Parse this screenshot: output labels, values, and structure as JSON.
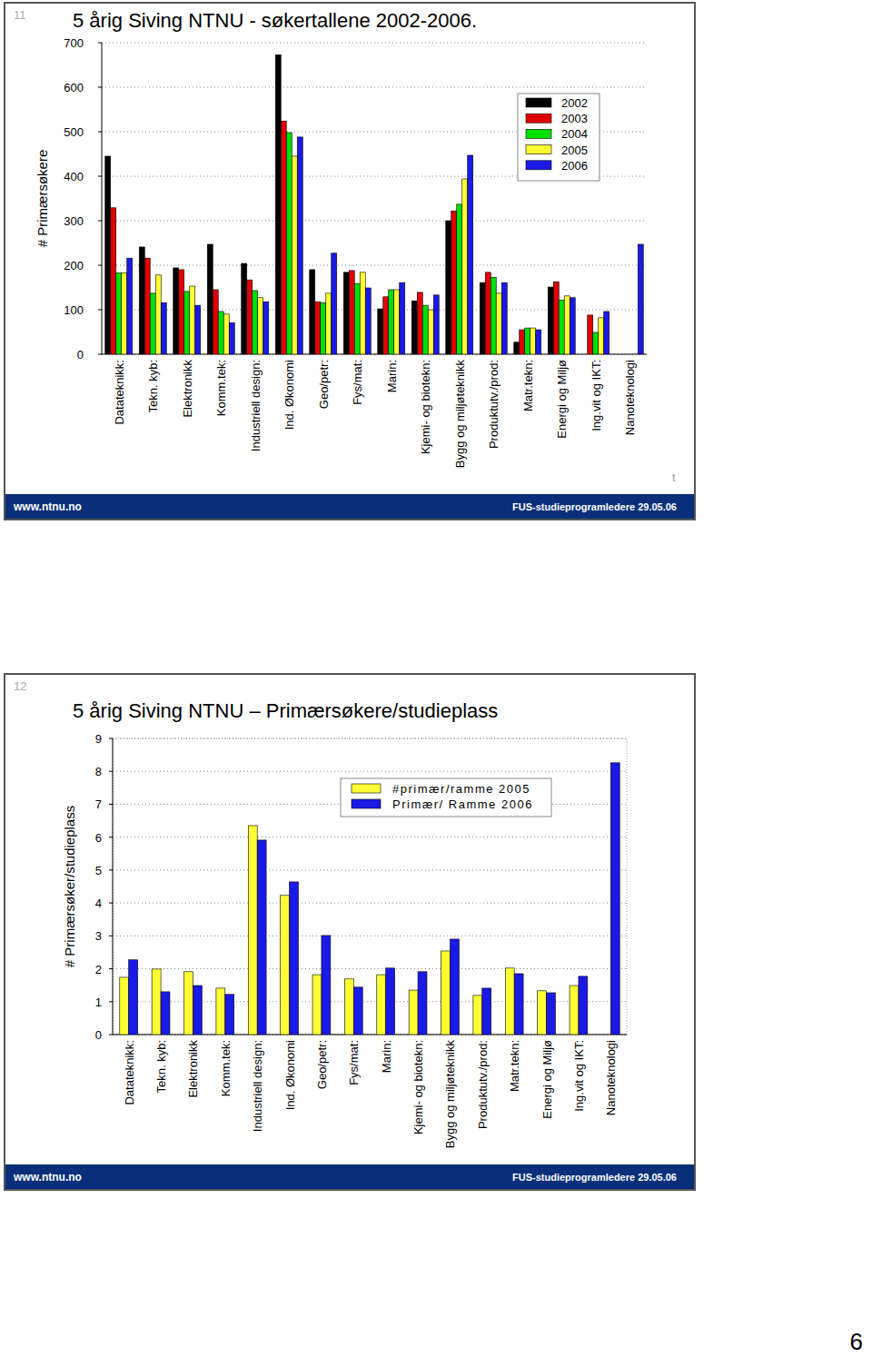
{
  "page": {
    "number": 6,
    "slides": [
      {
        "number": 11,
        "url": "www.ntnu.no",
        "footer": "FUS-studieprogramledere 29.05.06",
        "mark": "t"
      },
      {
        "number": 12,
        "url": "www.ntnu.no",
        "footer": "FUS-studieprogramledere 29.05.06"
      }
    ]
  },
  "chart_data": [
    {
      "type": "bar",
      "title": "5 årig Siving NTNU - søkertallene 2002-2006.",
      "ylabel": "# Primærsøkere",
      "categories": [
        "Datateknikk:",
        "Tekn. kyb:",
        "Elektronikk",
        "Komm.tek:",
        "Industriell design:",
        "Ind. Økonomi",
        "Geo/petr:",
        "Fys/mat:",
        "Marin:",
        "Kjemi- og biotekn:",
        "Bygg og miljøteknikk",
        "Produktutv./prod:",
        "Matr.tekn:",
        "Energi og Miljø",
        "Ing.vit og IKT:",
        "Nanoteknologi"
      ],
      "series": [
        {
          "name": "2002",
          "color": "#000000",
          "values": [
            445,
            241,
            194,
            247,
            204,
            673,
            190,
            184,
            102,
            120,
            300,
            161,
            27,
            151,
            null,
            null
          ]
        },
        {
          "name": "2003",
          "color": "#e00000",
          "values": [
            329,
            216,
            190,
            145,
            167,
            524,
            118,
            188,
            129,
            139,
            322,
            184,
            55,
            163,
            88,
            null
          ]
        },
        {
          "name": "2004",
          "color": "#00e000",
          "values": [
            183,
            137,
            141,
            96,
            143,
            498,
            116,
            159,
            145,
            110,
            337,
            173,
            59,
            122,
            49,
            null
          ]
        },
        {
          "name": "2005",
          "color": "#ffff33",
          "values": [
            183,
            178,
            153,
            90,
            127,
            445,
            137,
            184,
            145,
            100,
            394,
            137,
            59,
            131,
            82,
            null
          ]
        },
        {
          "name": "2006",
          "color": "#1a1ae6",
          "values": [
            216,
            116,
            110,
            71,
            118,
            488,
            227,
            149,
            161,
            133,
            447,
            161,
            55,
            127,
            96,
            247
          ]
        }
      ],
      "ylim": [
        0,
        700
      ],
      "yticks": [
        0,
        100,
        200,
        300,
        400,
        500,
        600,
        700
      ],
      "grid": true,
      "legend": "upper right"
    },
    {
      "type": "bar",
      "title": "5 årig Siving NTNU – Primærsøkere/studieplass",
      "ylabel": "# Primærsøker/studieplass",
      "categories": [
        "Datateknikk:",
        "Tekn. kyb:",
        "Elektronikk",
        "Komm.tek:",
        "Industriell design:",
        "Ind. Økonomi",
        "Geo/petr:",
        "Fys/mat:",
        "Marin:",
        "Kjemi- og biotekn:",
        "Bygg og miljøteknikk",
        "Produktutv./prod:",
        "Matr.tekn:",
        "Energi og Miljø",
        "Ing.vit og IKT:",
        "Nanoteknologi"
      ],
      "series": [
        {
          "name": "#primær/ramme 2005",
          "color": "#ffff33",
          "values": [
            1.74,
            1.99,
            1.91,
            1.41,
            6.35,
            4.23,
            1.82,
            1.69,
            1.82,
            1.35,
            2.54,
            1.19,
            2.02,
            1.33,
            1.49,
            null
          ]
        },
        {
          "name": "Primær/ Ramme 2006",
          "color": "#1a1ae6",
          "values": [
            2.27,
            1.3,
            1.49,
            1.22,
            5.91,
            4.64,
            3.01,
            1.44,
            2.02,
            1.91,
            2.9,
            1.41,
            1.85,
            1.27,
            1.77,
            8.26
          ]
        }
      ],
      "ylim": [
        0,
        9
      ],
      "yticks": [
        0,
        1,
        2,
        3,
        4,
        5,
        6,
        7,
        8,
        9
      ],
      "grid": true,
      "legend": "upper center"
    }
  ]
}
